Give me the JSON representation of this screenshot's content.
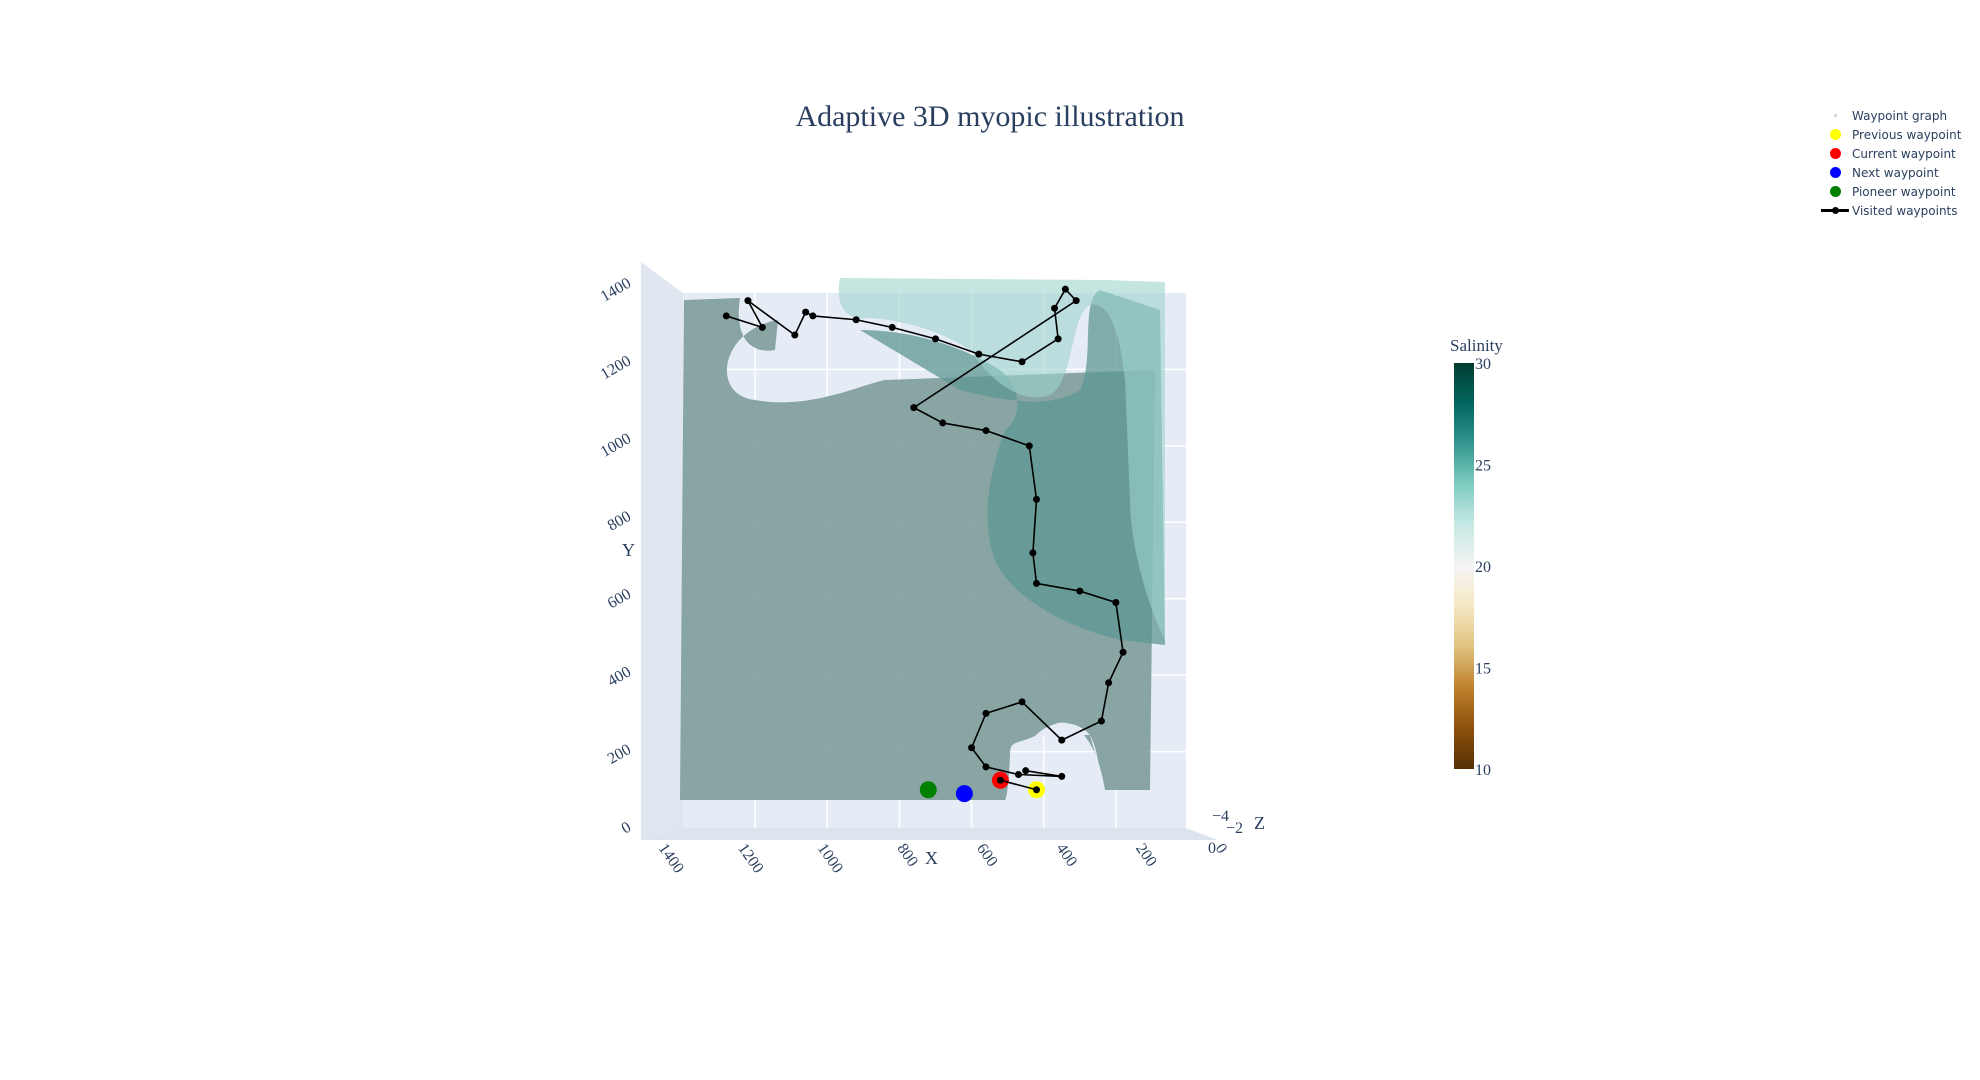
{
  "chart_data": {
    "type": "3d-surface-scatter",
    "title": "Adaptive 3D myopic illustration",
    "axes": {
      "x": {
        "title": "X",
        "range": [
          0,
          1400
        ],
        "ticks": [
          "0",
          "200",
          "400",
          "600",
          "800",
          "1000",
          "1200",
          "1400"
        ]
      },
      "y": {
        "title": "Y",
        "range": [
          0,
          1400
        ],
        "ticks": [
          "0",
          "200",
          "400",
          "600",
          "800",
          "1000",
          "1200",
          "1400"
        ]
      },
      "z": {
        "title": "Z",
        "ticks": [
          "−4",
          "−2",
          "0"
        ]
      }
    },
    "colorbar": {
      "title": "Salinity",
      "range": [
        10,
        30
      ],
      "ticks": [
        "10",
        "15",
        "20",
        "25",
        "30"
      ],
      "colorscale": [
        "#543005",
        "#8c510a",
        "#bf812d",
        "#dfc27d",
        "#f6e8c3",
        "#f5f5f5",
        "#c7eae5",
        "#80cdc1",
        "#35978f",
        "#01665e",
        "#003c30"
      ]
    },
    "legend": {
      "placement": "top-right",
      "items": [
        {
          "name": "Waypoint graph",
          "symbol": "tiny-dot",
          "color": "#cfcfcf"
        },
        {
          "name": "Previous waypoint",
          "symbol": "dot",
          "color": "#ffff00"
        },
        {
          "name": "Current waypoint",
          "symbol": "dot",
          "color": "#ff0000"
        },
        {
          "name": "Next waypoint",
          "symbol": "dot",
          "color": "#0000ff"
        },
        {
          "name": "Pioneer waypoint",
          "symbol": "dot",
          "color": "#008000"
        },
        {
          "name": "Visited waypoints",
          "symbol": "line",
          "color": "#000000"
        }
      ]
    },
    "visited_waypoints": [
      [
        1280,
        1340
      ],
      [
        1180,
        1310
      ],
      [
        1220,
        1380
      ],
      [
        1090,
        1290
      ],
      [
        1060,
        1350
      ],
      [
        1040,
        1340
      ],
      [
        920,
        1330
      ],
      [
        820,
        1310
      ],
      [
        700,
        1280
      ],
      [
        580,
        1240
      ],
      [
        460,
        1220
      ],
      [
        360,
        1280
      ],
      [
        370,
        1360
      ],
      [
        340,
        1410
      ],
      [
        310,
        1380
      ],
      [
        760,
        1100
      ],
      [
        680,
        1060
      ],
      [
        560,
        1040
      ],
      [
        440,
        1000
      ],
      [
        420,
        860
      ],
      [
        430,
        720
      ],
      [
        420,
        640
      ],
      [
        300,
        620
      ],
      [
        200,
        590
      ],
      [
        180,
        460
      ],
      [
        220,
        380
      ],
      [
        240,
        280
      ],
      [
        350,
        230
      ],
      [
        460,
        330
      ],
      [
        560,
        300
      ],
      [
        600,
        210
      ],
      [
        560,
        160
      ],
      [
        470,
        140
      ],
      [
        350,
        135
      ],
      [
        450,
        150
      ]
    ],
    "previous_waypoint": [
      420,
      100
    ],
    "current_waypoint": [
      520,
      125
    ],
    "next_waypoint": [
      620,
      90
    ],
    "pioneer_waypoint": [
      720,
      100
    ]
  }
}
